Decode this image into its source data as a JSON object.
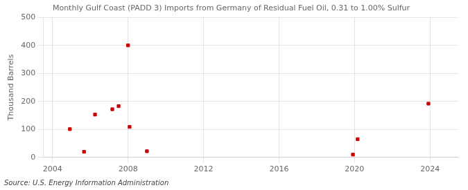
{
  "chart_data": {
    "type": "scatter",
    "title": "Monthly Gulf Coast (PADD 3) Imports from Germany of Residual Fuel Oil, 0.31 to 1.00% Sulfur",
    "ylabel": "Thousand Barrels",
    "source": "Source: U.S. Energy Information Administration",
    "x": [
      2004.917,
      2005.667,
      2006.25,
      2007.167,
      2007.5,
      2008.0,
      2008.083,
      2009.0,
      2019.917,
      2020.167,
      2023.917
    ],
    "values": [
      101,
      20,
      153,
      172,
      183,
      400,
      109,
      22,
      10,
      65,
      192
    ],
    "color": "#cc0000",
    "marker": "square",
    "xlim": [
      2003.5,
      2025.5
    ],
    "xticks": [
      2004,
      2008,
      2012,
      2016,
      2020,
      2024
    ],
    "ylim": [
      0,
      500
    ],
    "yticks": [
      0,
      100,
      200,
      300,
      400,
      500
    ],
    "grid": true
  }
}
